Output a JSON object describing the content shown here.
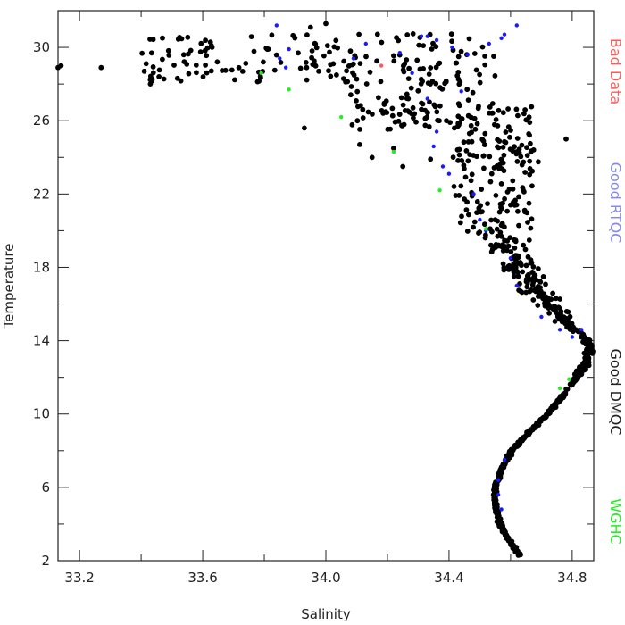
{
  "chart_data": {
    "type": "scatter",
    "xlabel": "Salinity",
    "ylabel": "Temperature",
    "xlim": [
      33.13,
      34.87
    ],
    "ylim": [
      2,
      32
    ],
    "x_ticks": [
      "33.2",
      "33.6",
      "34.0",
      "34.4",
      "34.8"
    ],
    "y_ticks": [
      "2",
      "6",
      "10",
      "14",
      "18",
      "22",
      "26",
      "30"
    ],
    "grid": false,
    "legend_position": "right, vertical",
    "series": [
      {
        "name": "Bad Data",
        "color": "#ff5a5a",
        "points": [
          [
            34.18,
            29.0
          ]
        ]
      },
      {
        "name": "Good RTQC",
        "color": "#1a1aff",
        "points": [
          [
            33.84,
            31.2
          ],
          [
            33.85,
            29.4
          ],
          [
            33.87,
            28.9
          ],
          [
            33.88,
            29.9
          ],
          [
            34.09,
            29.4
          ],
          [
            34.13,
            30.2
          ],
          [
            34.24,
            29.7
          ],
          [
            34.28,
            28.6
          ],
          [
            34.31,
            30.6
          ],
          [
            34.33,
            30.6
          ],
          [
            34.36,
            30.4
          ],
          [
            34.41,
            30.0
          ],
          [
            34.46,
            29.6
          ],
          [
            34.53,
            30.2
          ],
          [
            34.57,
            30.5
          ],
          [
            34.58,
            30.7
          ],
          [
            34.62,
            31.2
          ],
          [
            34.33,
            27.2
          ],
          [
            34.36,
            25.4
          ],
          [
            34.38,
            23.5
          ],
          [
            34.4,
            23.1
          ],
          [
            34.35,
            24.6
          ],
          [
            34.44,
            27.6
          ],
          [
            34.48,
            22.0
          ],
          [
            34.5,
            20.6
          ],
          [
            34.52,
            20.0
          ],
          [
            34.6,
            18.5
          ],
          [
            34.62,
            17.0
          ],
          [
            34.7,
            15.3
          ],
          [
            34.76,
            14.6
          ],
          [
            34.8,
            14.2
          ],
          [
            34.83,
            14.6
          ],
          [
            34.58,
            7.5
          ],
          [
            34.56,
            6.4
          ],
          [
            34.56,
            5.6
          ],
          [
            34.57,
            4.8
          ]
        ]
      },
      {
        "name": "Good DMQC",
        "color": "#000000",
        "points": []
      },
      {
        "name": "WGHC",
        "color": "#22ee22",
        "points": [
          [
            33.79,
            28.6
          ],
          [
            33.88,
            27.7
          ],
          [
            34.05,
            26.2
          ],
          [
            34.22,
            24.3
          ],
          [
            34.37,
            22.2
          ],
          [
            34.52,
            20.1
          ],
          [
            34.79,
            11.9
          ],
          [
            34.76,
            11.4
          ]
        ]
      }
    ]
  }
}
